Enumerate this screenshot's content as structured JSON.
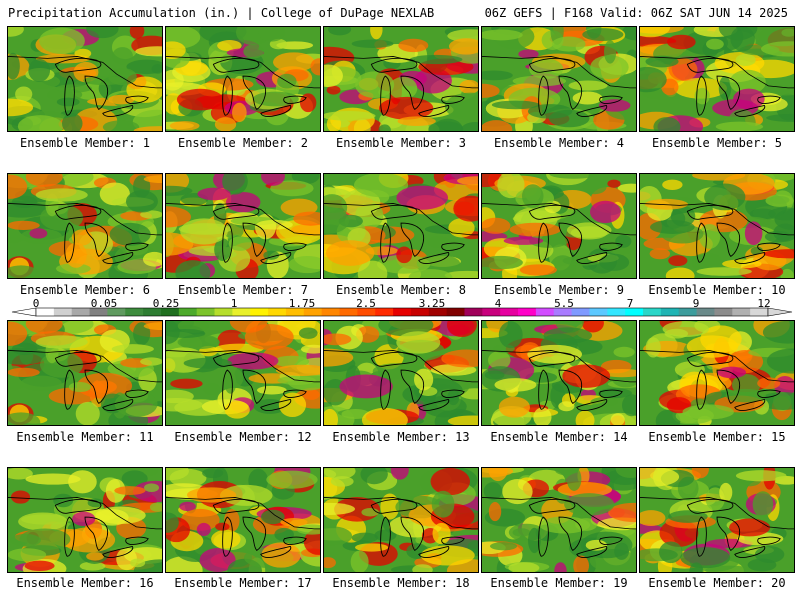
{
  "title_left": "Precipitation Accumulation (in.) | College of DuPage NEXLAB",
  "title_right": "06Z GEFS | F168 Valid: 06Z SAT JUN 14 2025",
  "colorbar": {
    "tick_labels": [
      "0",
      "0.05",
      "0.25",
      "1",
      "1.75",
      "2.5",
      "3.25",
      "4",
      "5.5",
      "7",
      "9",
      "12"
    ],
    "colors": [
      "#ffffff",
      "#d0d0d0",
      "#a8a8a8",
      "#808080",
      "#5f9a5f",
      "#3d8c3d",
      "#2e7d32",
      "#1f6f1f",
      "#4caa2a",
      "#7cc42a",
      "#b6de2a",
      "#e8f02a",
      "#fff200",
      "#ffd800",
      "#ffbe00",
      "#ffa200",
      "#ff8600",
      "#ff6a00",
      "#ff4c00",
      "#ff2a00",
      "#e60000",
      "#c80000",
      "#a00000",
      "#800000",
      "#a0005a",
      "#c8007d",
      "#e600a0",
      "#ff00c8",
      "#d24cff",
      "#a97cff",
      "#7f9aff",
      "#5cc8ff",
      "#33e6ff",
      "#00ffff",
      "#2ad6c8",
      "#1fb4b4",
      "#3c9c9c",
      "#6a8a8a",
      "#8c8c8c",
      "#b0b0b0",
      "#d8d8d8"
    ]
  },
  "panels": [
    {
      "label": "Ensemble Member: 1"
    },
    {
      "label": "Ensemble Member: 2"
    },
    {
      "label": "Ensemble Member: 3"
    },
    {
      "label": "Ensemble Member: 4"
    },
    {
      "label": "Ensemble Member: 5"
    },
    {
      "label": "Ensemble Member: 6"
    },
    {
      "label": "Ensemble Member: 7"
    },
    {
      "label": "Ensemble Member: 8"
    },
    {
      "label": "Ensemble Member: 9"
    },
    {
      "label": "Ensemble Member: 10"
    },
    {
      "label": "Ensemble Member: 11"
    },
    {
      "label": "Ensemble Member: 12"
    },
    {
      "label": "Ensemble Member: 13"
    },
    {
      "label": "Ensemble Member: 14"
    },
    {
      "label": "Ensemble Member: 15"
    },
    {
      "label": "Ensemble Member: 16"
    },
    {
      "label": "Ensemble Member: 17"
    },
    {
      "label": "Ensemble Member: 18"
    },
    {
      "label": "Ensemble Member: 19"
    },
    {
      "label": "Ensemble Member: 20"
    }
  ]
}
